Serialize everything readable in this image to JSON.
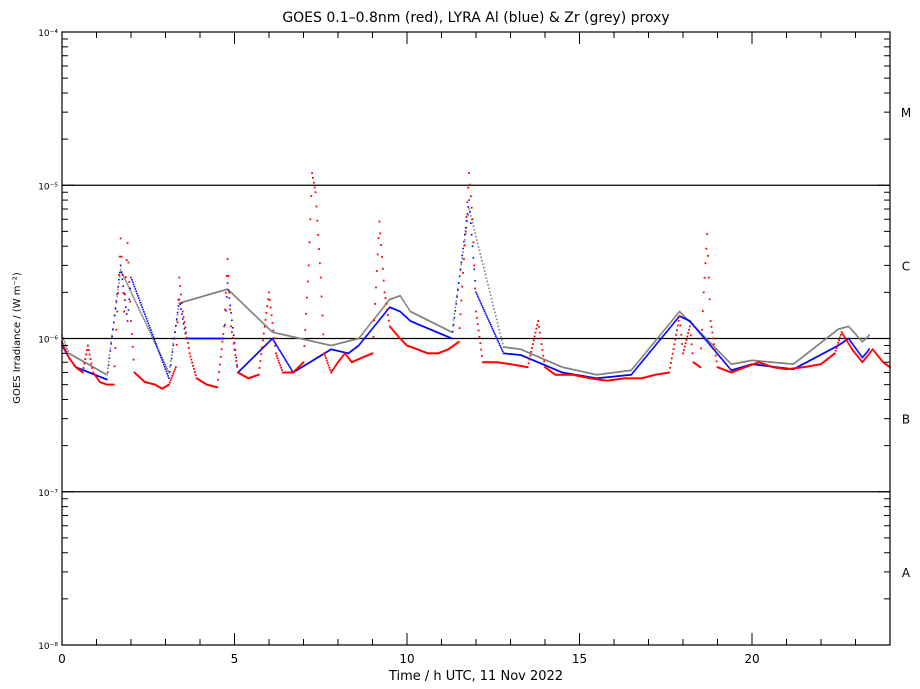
{
  "chart_data": {
    "type": "scatter",
    "title": "GOES 0.1–0.8nm (red), LYRA Al (blue) & Zr (grey) proxy",
    "xlabel": "Time / h UTC, 11 Nov 2022",
    "ylabel": "GOES Irradiance / (W m⁻²)",
    "xlim": [
      0,
      24
    ],
    "ylim": [
      1e-08,
      0.0001
    ],
    "yscale": "log",
    "x_ticks": [
      0,
      5,
      10,
      15,
      20
    ],
    "y_ticks": [
      {
        "value": 1e-08,
        "label": "10⁻⁸"
      },
      {
        "value": 1e-07,
        "label": "10⁻⁷"
      },
      {
        "value": 1e-06,
        "label": "10⁻⁶"
      },
      {
        "value": 1e-05,
        "label": "10⁻⁵"
      },
      {
        "value": 0.0001,
        "label": "10⁻⁴"
      }
    ],
    "flare_class_lines": [
      1e-07,
      1e-06,
      1e-05
    ],
    "flare_classes": [
      {
        "label": "A",
        "y": 3e-08
      },
      {
        "label": "B",
        "y": 3e-07
      },
      {
        "label": "C",
        "y": 3e-06
      },
      {
        "label": "M",
        "y": 3e-05
      }
    ],
    "grid": false,
    "series": [
      {
        "name": "GOES 0.1–0.8nm",
        "color": "#ff0000",
        "points": [
          [
            0.0,
            9.5e-07
          ],
          [
            0.2,
            7.5e-07
          ],
          [
            0.4,
            6.5e-07
          ],
          [
            0.6,
            6e-07
          ],
          [
            0.75,
            9e-07
          ],
          [
            0.9,
            6e-07
          ],
          [
            1.1,
            5.2e-07
          ],
          [
            1.3,
            5e-07
          ],
          [
            1.5,
            5e-07
          ],
          [
            1.6,
            1.5e-06
          ],
          [
            1.7,
            4.5e-06
          ],
          [
            1.8,
            1.5e-06
          ],
          [
            1.9,
            4.2e-06
          ],
          [
            2.0,
            1.3e-06
          ],
          [
            2.1,
            6e-07
          ],
          [
            2.4,
            5.2e-07
          ],
          [
            2.7,
            5e-07
          ],
          [
            2.9,
            4.7e-07
          ],
          [
            3.1,
            5e-07
          ],
          [
            3.3,
            6.5e-07
          ],
          [
            3.4,
            2.5e-06
          ],
          [
            3.5,
            1.5e-06
          ],
          [
            3.7,
            8e-07
          ],
          [
            3.9,
            5.5e-07
          ],
          [
            4.2,
            5e-07
          ],
          [
            4.5,
            4.8e-07
          ],
          [
            4.7,
            1.2e-06
          ],
          [
            4.8,
            3.3e-06
          ],
          [
            4.9,
            1.2e-06
          ],
          [
            5.1,
            6e-07
          ],
          [
            5.4,
            5.5e-07
          ],
          [
            5.7,
            5.8e-07
          ],
          [
            6.0,
            2e-06
          ],
          [
            6.2,
            8e-07
          ],
          [
            6.4,
            6e-07
          ],
          [
            6.7,
            6e-07
          ],
          [
            7.0,
            7e-07
          ],
          [
            7.15,
            3e-06
          ],
          [
            7.25,
            1.2e-05
          ],
          [
            7.35,
            9e-06
          ],
          [
            7.5,
            2.5e-06
          ],
          [
            7.6,
            8e-07
          ],
          [
            7.8,
            6e-07
          ],
          [
            8.0,
            7e-07
          ],
          [
            8.2,
            8e-07
          ],
          [
            8.4,
            7e-07
          ],
          [
            8.7,
            7.5e-07
          ],
          [
            9.0,
            8e-07
          ],
          [
            9.2,
            5.8e-06
          ],
          [
            9.35,
            2e-06
          ],
          [
            9.5,
            1.2e-06
          ],
          [
            9.8,
            1e-06
          ],
          [
            10.0,
            9e-07
          ],
          [
            10.3,
            8.5e-07
          ],
          [
            10.6,
            8e-07
          ],
          [
            10.9,
            8e-07
          ],
          [
            11.2,
            8.5e-07
          ],
          [
            11.5,
            9.5e-07
          ],
          [
            11.7,
            5e-06
          ],
          [
            11.8,
            1.2e-05
          ],
          [
            11.9,
            6e-06
          ],
          [
            12.0,
            1.5e-06
          ],
          [
            12.2,
            7e-07
          ],
          [
            12.6,
            7e-07
          ],
          [
            13.0,
            6.8e-07
          ],
          [
            13.5,
            6.5e-07
          ],
          [
            13.8,
            1.3e-06
          ],
          [
            14.0,
            6.5e-07
          ],
          [
            14.3,
            5.8e-07
          ],
          [
            14.8,
            5.8e-07
          ],
          [
            15.3,
            5.5e-07
          ],
          [
            15.8,
            5.3e-07
          ],
          [
            16.3,
            5.5e-07
          ],
          [
            16.8,
            5.5e-07
          ],
          [
            17.2,
            5.8e-07
          ],
          [
            17.6,
            6e-07
          ],
          [
            17.9,
            1.4e-06
          ],
          [
            18.0,
            8e-07
          ],
          [
            18.2,
            1.2e-06
          ],
          [
            18.3,
            7e-07
          ],
          [
            18.5,
            6.5e-07
          ],
          [
            18.6,
            2e-06
          ],
          [
            18.7,
            4.8e-06
          ],
          [
            18.8,
            1.3e-06
          ],
          [
            19.0,
            6.5e-07
          ],
          [
            19.4,
            6e-07
          ],
          [
            19.8,
            6.5e-07
          ],
          [
            20.2,
            7e-07
          ],
          [
            20.6,
            6.5e-07
          ],
          [
            21.0,
            6.3e-07
          ],
          [
            21.5,
            6.5e-07
          ],
          [
            22.0,
            6.8e-07
          ],
          [
            22.4,
            8e-07
          ],
          [
            22.6,
            1.1e-06
          ],
          [
            22.9,
            8.5e-07
          ],
          [
            23.2,
            7e-07
          ],
          [
            23.5,
            8.5e-07
          ],
          [
            23.8,
            7e-07
          ],
          [
            24.0,
            6.5e-07
          ]
        ]
      },
      {
        "name": "LYRA Al proxy",
        "color": "#0000ff",
        "points": [
          [
            0.0,
            9e-07
          ],
          [
            0.2,
            7.5e-07
          ],
          [
            0.4,
            6.5e-07
          ],
          [
            1.3,
            5.4e-07
          ],
          [
            1.7,
            3e-06
          ],
          [
            1.9,
            1.3e-06
          ],
          [
            2.0,
            2.5e-06
          ],
          [
            3.1,
            5.5e-07
          ],
          [
            3.4,
            1.8e-06
          ],
          [
            3.6,
            1e-06
          ],
          [
            4.7,
            1e-06
          ],
          [
            4.8,
            2.3e-06
          ],
          [
            5.1,
            6e-07
          ],
          [
            6.1,
            1e-06
          ],
          [
            6.7,
            6e-07
          ],
          [
            7.8,
            8.5e-07
          ],
          [
            8.3,
            8e-07
          ],
          [
            8.6,
            9e-07
          ],
          [
            9.5,
            1.6e-06
          ],
          [
            9.8,
            1.5e-06
          ],
          [
            10.1,
            1.3e-06
          ],
          [
            11.3,
            1e-06
          ],
          [
            11.8,
            8e-06
          ],
          [
            12.0,
            2e-06
          ],
          [
            12.8,
            8e-07
          ],
          [
            13.3,
            7.8e-07
          ],
          [
            14.5,
            6e-07
          ],
          [
            15.5,
            5.5e-07
          ],
          [
            16.5,
            5.8e-07
          ],
          [
            17.9,
            1.4e-06
          ],
          [
            18.2,
            1.3e-06
          ],
          [
            19.4,
            6.2e-07
          ],
          [
            20.0,
            6.8e-07
          ],
          [
            21.2,
            6.3e-07
          ],
          [
            22.5,
            9e-07
          ],
          [
            22.8,
            1e-06
          ],
          [
            23.2,
            7.5e-07
          ],
          [
            23.4,
            8.5e-07
          ]
        ]
      },
      {
        "name": "LYRA Zr proxy",
        "color": "#808080",
        "points": [
          [
            0.0,
            1.05e-06
          ],
          [
            0.2,
            8e-07
          ],
          [
            1.3,
            5.8e-07
          ],
          [
            1.7,
            2.8e-06
          ],
          [
            3.1,
            6e-07
          ],
          [
            3.4,
            1.7e-06
          ],
          [
            4.8,
            2.1e-06
          ],
          [
            6.1,
            1.1e-06
          ],
          [
            7.8,
            9e-07
          ],
          [
            8.6,
            1e-06
          ],
          [
            9.5,
            1.8e-06
          ],
          [
            9.8,
            1.9e-06
          ],
          [
            10.1,
            1.5e-06
          ],
          [
            11.3,
            1.1e-06
          ],
          [
            11.8,
            7e-06
          ],
          [
            12.8,
            8.8e-07
          ],
          [
            13.3,
            8.5e-07
          ],
          [
            14.5,
            6.5e-07
          ],
          [
            15.5,
            5.8e-07
          ],
          [
            16.5,
            6.2e-07
          ],
          [
            17.9,
            1.5e-06
          ],
          [
            19.4,
            6.8e-07
          ],
          [
            20.0,
            7.2e-07
          ],
          [
            21.2,
            6.8e-07
          ],
          [
            22.5,
            1.15e-06
          ],
          [
            22.8,
            1.2e-06
          ],
          [
            23.2,
            9.5e-07
          ],
          [
            23.4,
            1.05e-06
          ]
        ]
      }
    ]
  }
}
